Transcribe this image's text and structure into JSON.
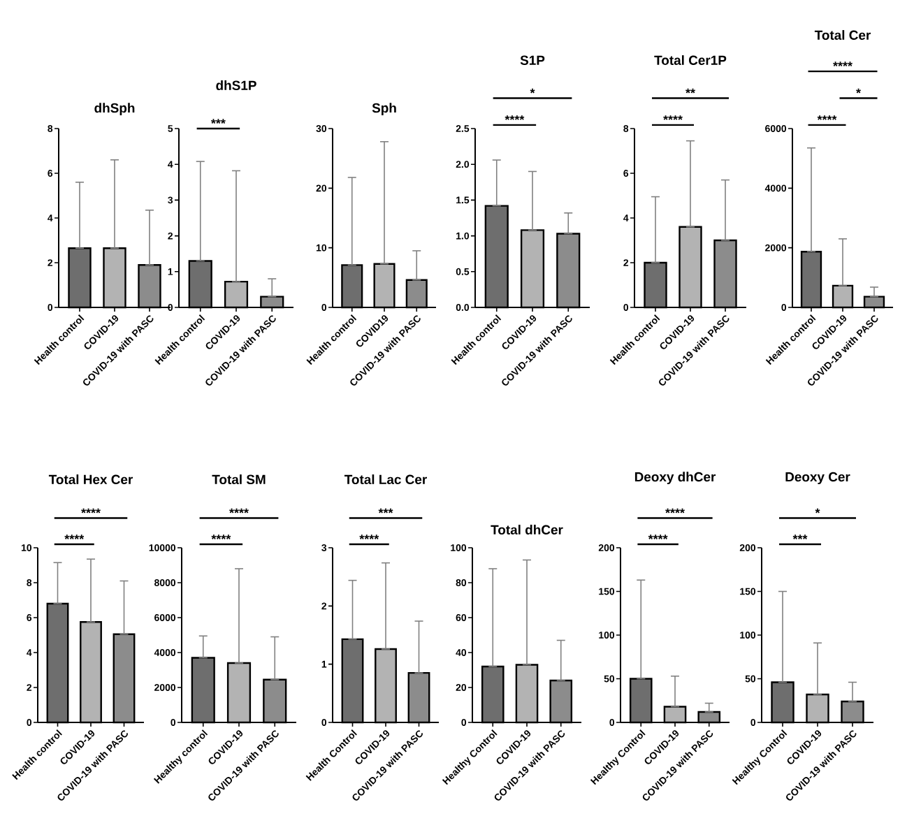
{
  "chart_data": [
    {
      "type": "bar",
      "title": "dhSph",
      "categories": [
        "Health control",
        "COVID-19",
        "COVID-19 with PASC"
      ],
      "values": [
        2.65,
        2.65,
        1.9
      ],
      "errors": [
        [
          2.65,
          5.6
        ],
        [
          2.65,
          6.6
        ],
        [
          1.9,
          4.35
        ]
      ],
      "colors": [
        "#6e6e6e",
        "#b3b3b3",
        "#8c8c8c"
      ],
      "ylim": [
        0,
        8
      ],
      "yticks": [
        0,
        2,
        4,
        6,
        8
      ]
    },
    {
      "type": "bar",
      "title": "dhS1P",
      "categories": [
        "Health control",
        "COVID-19",
        "COVID-19 with PASC"
      ],
      "values": [
        1.3,
        0.72,
        0.3
      ],
      "errors": [
        [
          1.3,
          4.08
        ],
        [
          0.72,
          3.82
        ],
        [
          0.3,
          0.8
        ]
      ],
      "colors": [
        "#6e6e6e",
        "#b3b3b3",
        "#8c8c8c"
      ],
      "ylim": [
        0,
        5
      ],
      "yticks": [
        0,
        1,
        2,
        3,
        4,
        5
      ],
      "annotations": [
        "***"
      ]
    },
    {
      "type": "bar",
      "title": "Sph",
      "categories": [
        "Health control",
        "COVID19",
        "COVID-19 with PASC"
      ],
      "values": [
        7.1,
        7.3,
        4.6
      ],
      "errors": [
        [
          7.1,
          21.8
        ],
        [
          7.3,
          27.8
        ],
        [
          4.6,
          9.5
        ]
      ],
      "colors": [
        "#6e6e6e",
        "#b3b3b3",
        "#8c8c8c"
      ],
      "ylim": [
        0,
        30
      ],
      "yticks": [
        0,
        10,
        20,
        30
      ]
    },
    {
      "type": "bar",
      "title": "S1P",
      "categories": [
        "Health control",
        "COVID-19",
        "COVID-19 with PASC"
      ],
      "values": [
        1.42,
        1.08,
        1.03
      ],
      "errors": [
        [
          1.42,
          2.06
        ],
        [
          1.08,
          1.9
        ],
        [
          1.03,
          1.32
        ]
      ],
      "colors": [
        "#6e6e6e",
        "#b3b3b3",
        "#8c8c8c"
      ],
      "ylim": [
        0,
        2.5
      ],
      "yticks": [
        {
          "value": 0,
          "label": "0.0"
        },
        0.5,
        {
          "value": 1,
          "label": "1.0"
        },
        1.5,
        {
          "value": 2,
          "label": "2.0"
        },
        2.5
      ],
      "annotations": [
        "****",
        "*"
      ]
    },
    {
      "type": "bar",
      "title": "Total Cer1P",
      "categories": [
        "Health control",
        "COVID-19",
        "COVID-19 with PASC"
      ],
      "values": [
        2.0,
        3.6,
        3.0
      ],
      "errors": [
        [
          2.0,
          4.95
        ],
        [
          3.6,
          7.45
        ],
        [
          3.0,
          5.7
        ]
      ],
      "colors": [
        "#6e6e6e",
        "#b3b3b3",
        "#8c8c8c"
      ],
      "ylim": [
        0,
        8
      ],
      "yticks": [
        0,
        2,
        4,
        6,
        8
      ],
      "annotations": [
        "****",
        "**"
      ]
    },
    {
      "type": "bar",
      "title": "Total Cer",
      "categories": [
        "Health control",
        "COVID-19",
        "COVID-19 with PASC"
      ],
      "values": [
        1870,
        730,
        360
      ],
      "errors": [
        [
          1870,
          5350
        ],
        [
          730,
          2300
        ],
        [
          360,
          680
        ]
      ],
      "colors": [
        "#6e6e6e",
        "#b3b3b3",
        "#8c8c8c"
      ],
      "ylim": [
        0,
        6000
      ],
      "yticks": [
        0,
        2000,
        4000,
        6000
      ],
      "annotations": [
        "****",
        "*",
        "****"
      ]
    },
    {
      "type": "bar",
      "title": "Total Hex Cer",
      "categories": [
        "Health control",
        "COVID-19",
        "COVID-19 with PASC"
      ],
      "values": [
        6.8,
        5.75,
        5.05
      ],
      "errors": [
        [
          6.8,
          9.15
        ],
        [
          5.75,
          9.35
        ],
        [
          5.05,
          8.1
        ]
      ],
      "colors": [
        "#6e6e6e",
        "#b3b3b3",
        "#8c8c8c"
      ],
      "ylim": [
        0,
        10
      ],
      "yticks": [
        0,
        2,
        4,
        6,
        8,
        10
      ],
      "annotations": [
        "****",
        "****"
      ]
    },
    {
      "type": "bar",
      "title": "Total SM",
      "categories": [
        "Healthy control",
        "COVID-19",
        "COVID-19 with PASC"
      ],
      "values": [
        3700,
        3400,
        2450
      ],
      "errors": [
        [
          3700,
          4950
        ],
        [
          3400,
          8800
        ],
        [
          2450,
          4900
        ]
      ],
      "colors": [
        "#6e6e6e",
        "#b3b3b3",
        "#8c8c8c"
      ],
      "ylim": [
        0,
        10000
      ],
      "yticks": [
        0,
        2000,
        4000,
        6000,
        8000,
        10000
      ],
      "annotations": [
        "****",
        "****"
      ]
    },
    {
      "type": "bar",
      "title": "Total Lac Cer",
      "categories": [
        "Health Control",
        "COVID-19",
        "COVID-19 with PASC"
      ],
      "values": [
        1.43,
        1.26,
        0.85
      ],
      "errors": [
        [
          1.43,
          2.44
        ],
        [
          1.26,
          2.74
        ],
        [
          0.85,
          1.74
        ]
      ],
      "colors": [
        "#6e6e6e",
        "#b3b3b3",
        "#8c8c8c"
      ],
      "ylim": [
        0,
        3
      ],
      "yticks": [
        0,
        1,
        2,
        3
      ],
      "annotations": [
        "****",
        "***"
      ]
    },
    {
      "type": "bar",
      "title": "Total dhCer",
      "categories": [
        "Healthy Control",
        "COVID-19",
        "COVID-19 with PASC"
      ],
      "values": [
        32,
        33,
        24
      ],
      "errors": [
        [
          32,
          88
        ],
        [
          33,
          93
        ],
        [
          24,
          47
        ]
      ],
      "colors": [
        "#6e6e6e",
        "#b3b3b3",
        "#8c8c8c"
      ],
      "ylim": [
        0,
        100
      ],
      "yticks": [
        0,
        20,
        40,
        60,
        80,
        100
      ]
    },
    {
      "type": "bar",
      "title": "Deoxy dhCer",
      "categories": [
        "Healthy Control",
        "COVID-19",
        "COVID-19 with PASC"
      ],
      "values": [
        50,
        18,
        12
      ],
      "errors": [
        [
          50,
          163
        ],
        [
          18,
          53
        ],
        [
          12,
          22
        ]
      ],
      "colors": [
        "#6e6e6e",
        "#b3b3b3",
        "#8c8c8c"
      ],
      "ylim": [
        0,
        200
      ],
      "yticks": [
        0,
        50,
        100,
        150,
        200
      ],
      "annotations": [
        "****",
        "****"
      ]
    },
    {
      "type": "bar",
      "title": "Deoxy Cer",
      "categories": [
        "Healthy Control",
        "COVID-19",
        "COVID-19 with PASC"
      ],
      "values": [
        46,
        32,
        24
      ],
      "errors": [
        [
          46,
          150
        ],
        [
          32,
          91
        ],
        [
          24,
          46
        ]
      ],
      "colors": [
        "#6e6e6e",
        "#b3b3b3",
        "#8c8c8c"
      ],
      "ylim": [
        0,
        200
      ],
      "yticks": [
        0,
        50,
        100,
        150,
        200
      ],
      "annotations": [
        "***",
        "*"
      ]
    }
  ]
}
